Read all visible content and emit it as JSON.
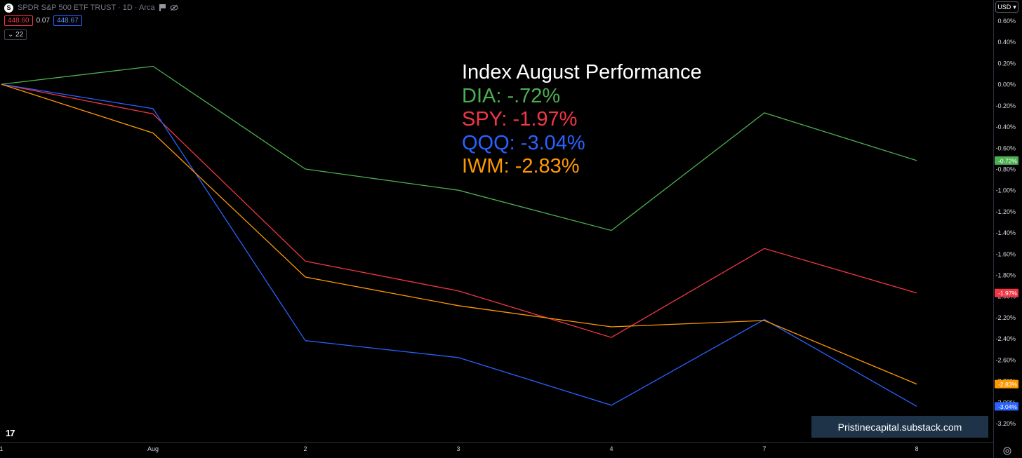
{
  "header": {
    "symbol_logo": "S",
    "title": "SPDR S&P 500 ETF TRUST · 1D · Arca",
    "bid": "448.60",
    "spread": "0.07",
    "ask": "448.67",
    "indicator_count": "22",
    "currency": "USD"
  },
  "annotation": {
    "title": "Index August Performance",
    "lines": [
      "DIA: -.72%",
      "SPY: -1.97%",
      "QQQ: -3.04%",
      "IWM: -2.83%"
    ]
  },
  "watermark": "Pristinecapital.substack.com",
  "brand_logo": "17",
  "colors": {
    "background": "#000000",
    "DIA": "#4caf50",
    "SPY": "#f23645",
    "QQQ": "#2962ff",
    "IWM": "#ff9800",
    "text": "#d1d4dc"
  },
  "icons": [
    "flag-icon",
    "eye-off-icon",
    "chevron-down-icon",
    "settings-icon"
  ],
  "chart_data": {
    "type": "line",
    "title": "",
    "x": [
      "1",
      "Aug",
      "2",
      "3",
      "4",
      "7",
      "8"
    ],
    "y_tick_labels": [
      "0.60%",
      "0.40%",
      "0.20%",
      "0.00%",
      "-0.20%",
      "-0.40%",
      "-0.60%",
      "-0.80%",
      "-1.00%",
      "-1.20%",
      "-1.40%",
      "-1.60%",
      "-1.80%",
      "-2.00%",
      "-2.20%",
      "-2.40%",
      "-2.60%",
      "-2.80%",
      "-3.00%",
      "-3.20%"
    ],
    "y_ticks": [
      0.6,
      0.4,
      0.2,
      0.0,
      -0.2,
      -0.4,
      -0.6,
      -0.8,
      -1.0,
      -1.2,
      -1.4,
      -1.6,
      -1.8,
      -2.0,
      -2.2,
      -2.4,
      -2.6,
      -2.8,
      -3.0,
      -3.2
    ],
    "ylim": [
      -3.2,
      0.6
    ],
    "grid": false,
    "series": [
      {
        "name": "DIA",
        "color": "#4caf50",
        "values": [
          0.0,
          0.17,
          -0.8,
          -1.0,
          -1.38,
          -0.27,
          -0.72
        ],
        "last_label": "-0.72%"
      },
      {
        "name": "SPY",
        "color": "#f23645",
        "values": [
          0.0,
          -0.28,
          -1.67,
          -1.95,
          -2.39,
          -1.55,
          -1.97
        ],
        "last_label": "-1.97%"
      },
      {
        "name": "QQQ",
        "color": "#2962ff",
        "values": [
          0.0,
          -0.23,
          -2.42,
          -2.58,
          -3.03,
          -2.22,
          -3.04
        ],
        "last_label": "-3.04%"
      },
      {
        "name": "IWM",
        "color": "#ff9800",
        "values": [
          0.0,
          -0.46,
          -1.82,
          -2.09,
          -2.29,
          -2.23,
          -2.83
        ],
        "last_label": "-2.83%"
      }
    ]
  }
}
